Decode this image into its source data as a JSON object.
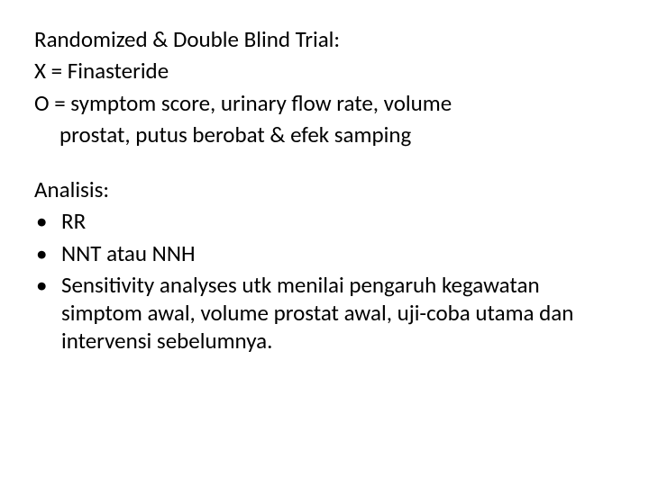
{
  "text_color": "#000000",
  "background_color": "#ffffff",
  "font_size_pt": 25,
  "block1": {
    "line1": "Randomized & Double Blind Trial:",
    "line2": "X = Finasteride",
    "line3a": "O = symptom score, urinary flow rate, volume",
    "line3b": "prostat, putus berobat & efek samping"
  },
  "block2": {
    "heading": "Analisis:",
    "bullets": [
      "RR",
      "NNT atau NNH",
      "Sensitivity analyses utk menilai pengaruh kegawatan simptom awal,  volume prostat awal, uji-coba utama dan intervensi sebelumnya."
    ]
  }
}
